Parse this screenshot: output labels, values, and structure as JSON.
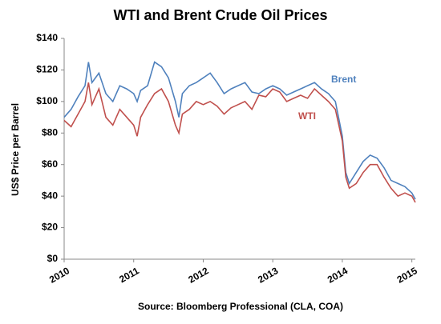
{
  "chart_data": {
    "type": "line",
    "title": "WTI and Brent Crude Oil Prices",
    "y_label": "US$ Price per Barrel",
    "x_label": "Source:  Bloomberg Professional (CLA, COA)",
    "x": [
      2010.0,
      2010.1,
      2010.2,
      2010.3,
      2010.35,
      2010.4,
      2010.5,
      2010.6,
      2010.7,
      2010.8,
      2010.9,
      2011.0,
      2011.05,
      2011.1,
      2011.2,
      2011.3,
      2011.4,
      2011.5,
      2011.6,
      2011.65,
      2011.7,
      2011.8,
      2011.9,
      2012.0,
      2012.1,
      2012.2,
      2012.3,
      2012.4,
      2012.5,
      2012.6,
      2012.7,
      2012.8,
      2012.9,
      2013.0,
      2013.1,
      2013.2,
      2013.3,
      2013.4,
      2013.5,
      2013.6,
      2013.7,
      2013.8,
      2013.9,
      2014.0,
      2014.05,
      2014.1,
      2014.2,
      2014.3,
      2014.4,
      2014.5,
      2014.6,
      2014.7,
      2014.8,
      2014.9,
      2015.0,
      2015.05
    ],
    "series": [
      {
        "name": "Brent",
        "color": "#4f81bd",
        "values": [
          90,
          95,
          103,
          110,
          125,
          112,
          118,
          105,
          100,
          110,
          108,
          105,
          100,
          107,
          110,
          125,
          122,
          115,
          100,
          90,
          105,
          110,
          112,
          115,
          118,
          112,
          105,
          108,
          110,
          112,
          106,
          105,
          108,
          110,
          108,
          104,
          106,
          108,
          110,
          112,
          108,
          105,
          100,
          78,
          55,
          48,
          55,
          62,
          66,
          64,
          58,
          50,
          48,
          46,
          42,
          38
        ]
      },
      {
        "name": "WTI",
        "color": "#c0504d",
        "values": [
          88,
          84,
          92,
          100,
          112,
          98,
          108,
          90,
          85,
          95,
          90,
          85,
          78,
          90,
          98,
          105,
          108,
          100,
          85,
          80,
          92,
          95,
          100,
          98,
          100,
          97,
          92,
          96,
          98,
          100,
          95,
          104,
          103,
          108,
          106,
          100,
          102,
          104,
          102,
          108,
          104,
          100,
          95,
          75,
          52,
          45,
          48,
          55,
          60,
          60,
          52,
          45,
          40,
          42,
          40,
          36
        ]
      }
    ],
    "xlim": [
      2010,
      2015.05
    ],
    "xticks": [
      2010,
      2011,
      2012,
      2013,
      2014,
      2015
    ],
    "ylim": [
      0,
      140
    ],
    "yticks": [
      {
        "value": 0,
        "label": "$0"
      },
      {
        "value": 20,
        "label": "$20"
      },
      {
        "value": 40,
        "label": "$40"
      },
      {
        "value": 60,
        "label": "$60"
      },
      {
        "value": 80,
        "label": "$80"
      },
      {
        "value": 100,
        "label": "$100"
      },
      {
        "value": 120,
        "label": "$120"
      },
      {
        "value": 140,
        "label": "$140"
      }
    ],
    "grid": false
  }
}
